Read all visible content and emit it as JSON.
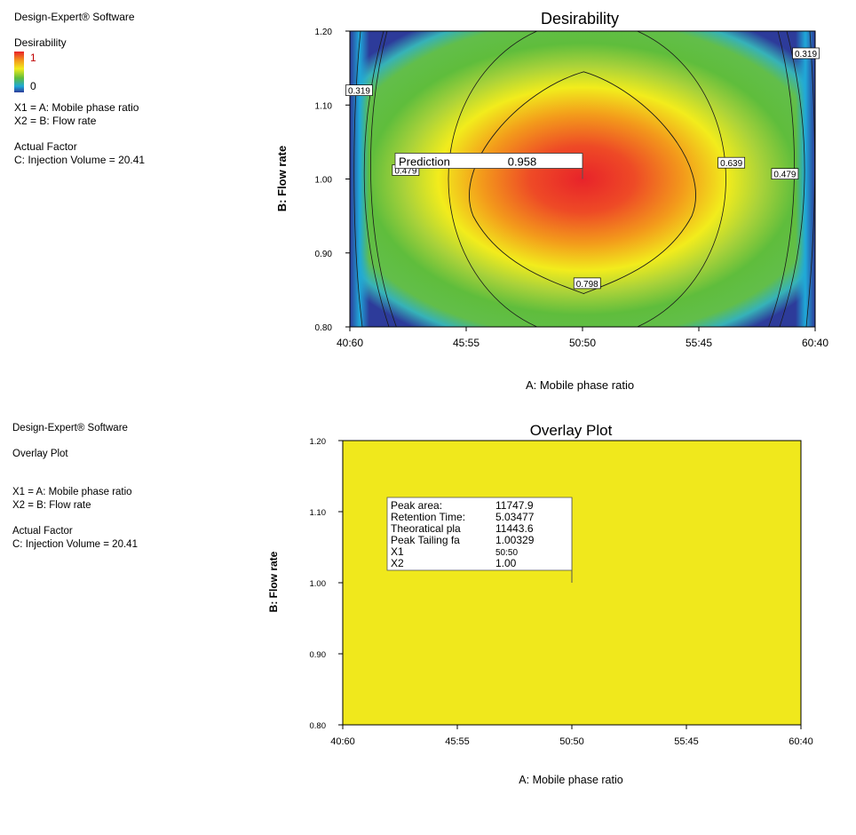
{
  "top_info": {
    "software": "Design-Expert® Software",
    "legend_title": "Desirability",
    "legend_high": "1",
    "legend_low": "0",
    "x1_def": "X1 = A: Mobile phase ratio",
    "x2_def": "X2 = B: Flow rate",
    "actual_factor_heading": "Actual Factor",
    "actual_factor_value": "C: Injection Volume = 20.41"
  },
  "bottom_info": {
    "software": "Design-Expert® Software",
    "plot_name": "Overlay Plot",
    "x1_def": "X1 = A: Mobile phase ratio",
    "x2_def": "X2 = B: Flow rate",
    "actual_factor_heading": "Actual Factor",
    "actual_factor_value": "C: Injection Volume = 20.41"
  },
  "chart_data": [
    {
      "type": "heatmap",
      "title": "Desirability",
      "xlabel": "A: Mobile phase ratio",
      "ylabel": "B: Flow rate",
      "x_ticks": [
        "40:60",
        "45:55",
        "50:50",
        "55:45",
        "60:40"
      ],
      "y_ticks": [
        "0.80",
        "0.90",
        "1.00",
        "1.10",
        "1.20"
      ],
      "ylim": [
        0.8,
        1.2
      ],
      "color_scale": [
        "#2d3b9a",
        "#1fa9d8",
        "#5fbd3c",
        "#f2ec1c",
        "#f39a1b",
        "#e8232a"
      ],
      "contour_labels": [
        {
          "label": "0.319",
          "x": 40.4,
          "y": 1.12
        },
        {
          "label": "0.319",
          "x": 59.6,
          "y": 1.17
        },
        {
          "label": "0.479",
          "x": 42.4,
          "y": 1.012
        },
        {
          "label": "0.479",
          "x": 58.7,
          "y": 1.007
        },
        {
          "label": "0.639",
          "x": 56.4,
          "y": 1.022
        },
        {
          "label": "0.798",
          "x": 50.2,
          "y": 0.859
        }
      ],
      "prediction": {
        "label": "Prediction",
        "value": "0.958",
        "x": 50,
        "y": 1.0
      }
    },
    {
      "type": "heatmap",
      "title": "Overlay Plot",
      "xlabel": "A: Mobile phase ratio",
      "ylabel": "B: Flow rate",
      "x_ticks": [
        "40:60",
        "45:55",
        "50:50",
        "55:45",
        "60:40"
      ],
      "y_ticks": [
        "0.80",
        "0.90",
        "1.00",
        "1.10",
        "1.20"
      ],
      "ylim": [
        0.8,
        1.2
      ],
      "fill_color": "#f0e81c",
      "flag": {
        "x": 50,
        "y": 1.0,
        "rows": [
          {
            "name": "Peak area:",
            "value": "11747.9"
          },
          {
            "name": "Retention Time:",
            "value": "5.03477"
          },
          {
            "name": "Theoratical pla",
            "value": "11443.6"
          },
          {
            "name": "Peak Tailing fa",
            "value": "1.00329"
          },
          {
            "name": "X1",
            "value": "50:50"
          },
          {
            "name": "X2",
            "value": "1.00"
          }
        ]
      }
    }
  ]
}
